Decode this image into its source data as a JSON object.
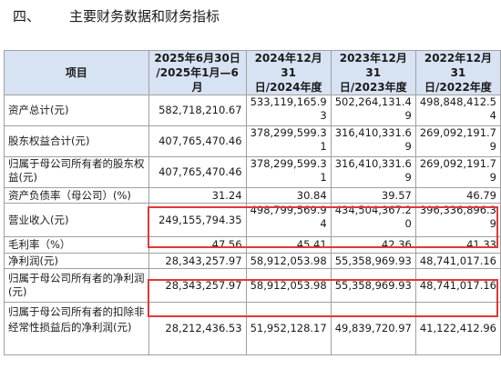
{
  "section": {
    "number": "四、",
    "title": "主要财务数据和财务指标"
  },
  "table": {
    "item_header": "项目",
    "periods": [
      {
        "line1": "2025年6月30日",
        "line2": "/2025年1月—6月"
      },
      {
        "line1": "2024年12月31",
        "line2": "日/2024年度"
      },
      {
        "line1": "2023年12月31",
        "line2": "日/2023年度"
      },
      {
        "line1": "2022年12月31",
        "line2": "日/2022年度"
      }
    ],
    "rows": [
      {
        "metric": "资产总计(元)",
        "values": [
          "582,718,210.67",
          "533,119,165.93",
          "502,264,131.49",
          "498,848,412.54"
        ]
      },
      {
        "metric": "股东权益合计(元)",
        "values": [
          "407,765,470.46",
          "378,299,599.31",
          "316,410,331.69",
          "269,092,191.79"
        ]
      },
      {
        "metric": "归属于母公司所有者的股东权益(元)",
        "values": [
          "407,765,470.46",
          "378,299,599.31",
          "316,410,331.69",
          "269,092,191.79"
        ]
      },
      {
        "metric": "资产负债率（母公司）(%)",
        "values": [
          "31.24",
          "30.84",
          "39.57",
          "46.79"
        ]
      },
      {
        "metric": "营业收入(元)",
        "values": [
          "249,155,794.35",
          "498,799,569.94",
          "434,504,367.20",
          "396,336,896.39"
        ]
      },
      {
        "metric": "毛利率（%）",
        "values": [
          "47.56",
          "45.41",
          "42.36",
          "41.33"
        ]
      },
      {
        "metric": "净利润(元)",
        "values": [
          "28,343,257.97",
          "58,912,053.98",
          "55,358,969.93",
          "48,741,017.16"
        ]
      },
      {
        "metric": "归属于母公司所有者的净利润(元)",
        "values": [
          "28,343,257.97",
          "58,912,053.98",
          "55,358,969.93",
          "48,741,017.16"
        ]
      },
      {
        "metric": "归属于母公司所有者的扣除非经常性损益后的净利润(元)",
        "values": [
          "28,212,436.53",
          "51,952,128.17",
          "49,839,720.97",
          "41,122,412.96"
        ]
      }
    ]
  },
  "colors": {
    "header_bg": "#d7e2f3",
    "highlight_border": "#e03838",
    "grid": "#a0a0a0"
  }
}
